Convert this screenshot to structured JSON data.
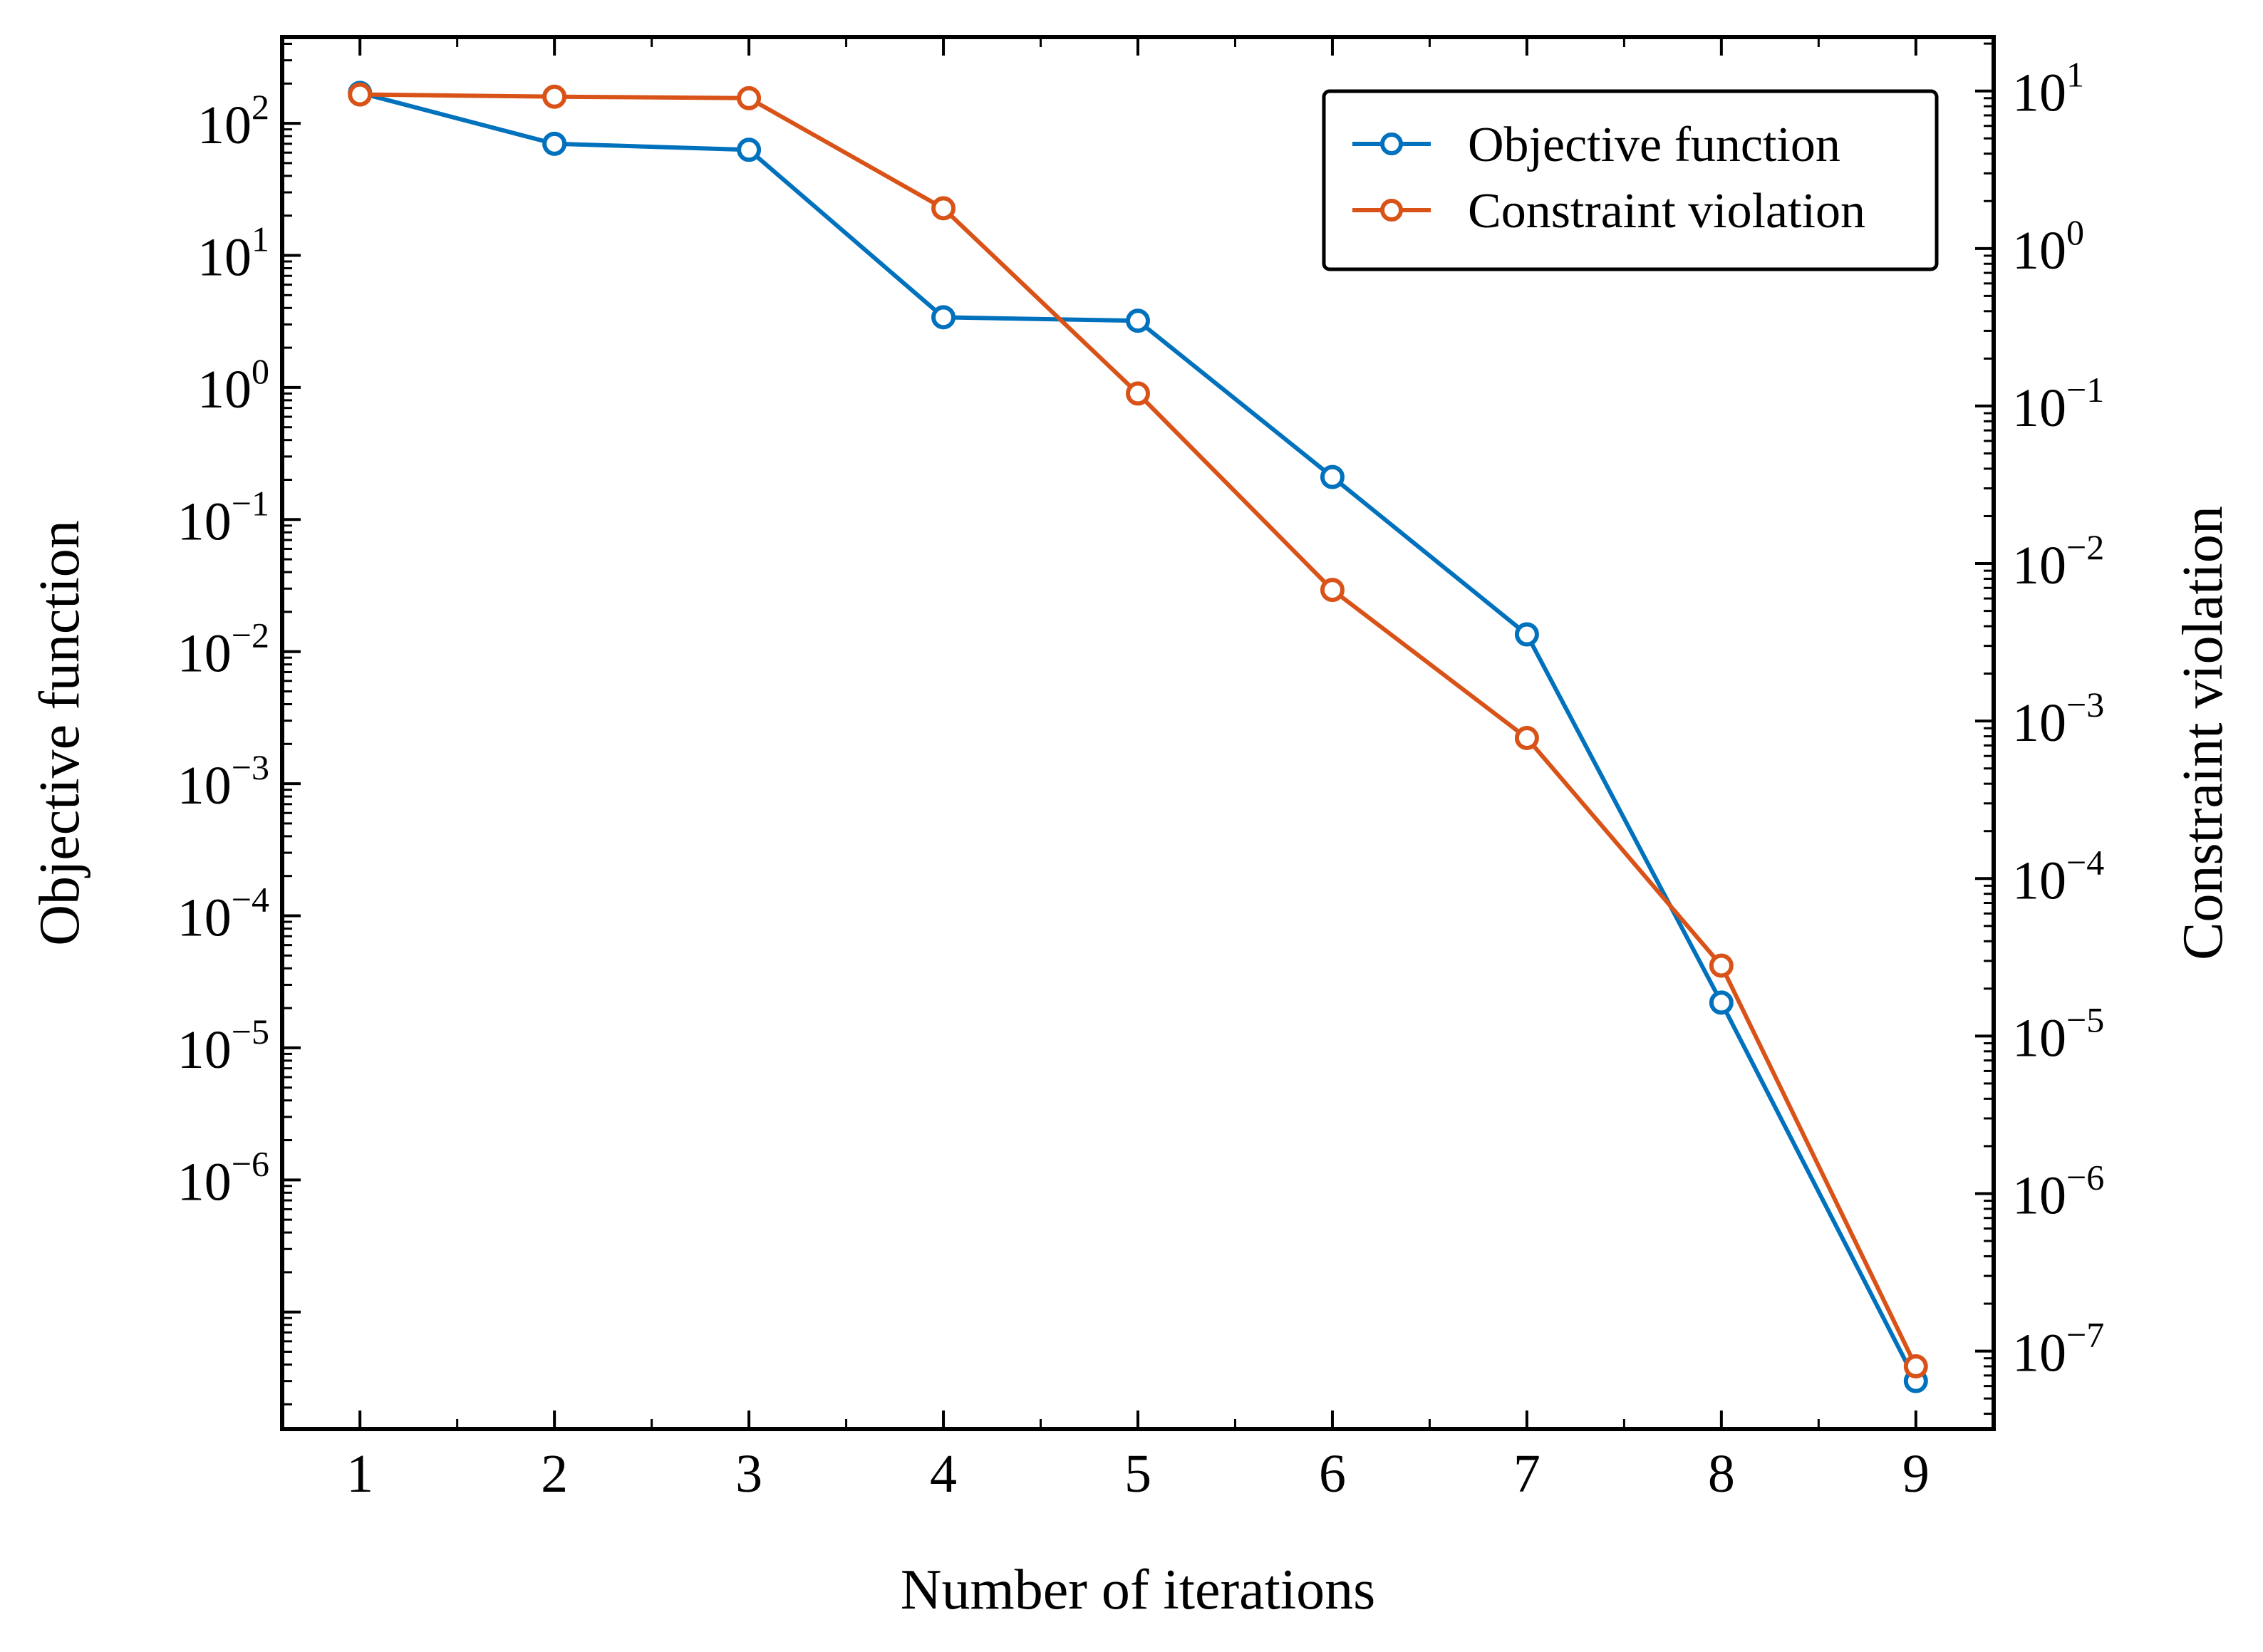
{
  "chart_data": {
    "type": "line",
    "title": "",
    "xlabel": "Number of iterations",
    "ylabel": "Objective function",
    "y2label": "Constraint violation",
    "x": [
      1,
      2,
      3,
      4,
      5,
      6,
      7,
      8,
      9
    ],
    "x_ticks": [
      "1",
      "2",
      "3",
      "4",
      "5",
      "6",
      "7",
      "8",
      "9"
    ],
    "xlim": [
      0.6,
      9.4
    ],
    "y_scale": "log",
    "ylim": [
      1.3e-08,
      450
    ],
    "y_ticks": [
      {
        "value": 100,
        "base": "10",
        "exp": "2"
      },
      {
        "value": 10,
        "base": "10",
        "exp": "1"
      },
      {
        "value": 1,
        "base": "10",
        "exp": "0"
      },
      {
        "value": 0.1,
        "base": "10",
        "exp": "−1"
      },
      {
        "value": 0.01,
        "base": "10",
        "exp": "−2"
      },
      {
        "value": 0.001,
        "base": "10",
        "exp": "−3"
      },
      {
        "value": 0.0001,
        "base": "10",
        "exp": "−4"
      },
      {
        "value": 1e-05,
        "base": "10",
        "exp": "−5"
      },
      {
        "value": 1e-06,
        "base": "10",
        "exp": "−6"
      }
    ],
    "y2_scale": "log",
    "y2lim": [
      3.2e-08,
      22
    ],
    "y2_ticks": [
      {
        "value": 10,
        "base": "10",
        "exp": "1"
      },
      {
        "value": 1,
        "base": "10",
        "exp": "0"
      },
      {
        "value": 0.1,
        "base": "10",
        "exp": "−1"
      },
      {
        "value": 0.01,
        "base": "10",
        "exp": "−2"
      },
      {
        "value": 0.001,
        "base": "10",
        "exp": "−3"
      },
      {
        "value": 0.0001,
        "base": "10",
        "exp": "−4"
      },
      {
        "value": 1e-05,
        "base": "10",
        "exp": "−5"
      },
      {
        "value": 1e-06,
        "base": "10",
        "exp": "−6"
      },
      {
        "value": 1e-07,
        "base": "10",
        "exp": "−7"
      }
    ],
    "series": [
      {
        "name": "Objective function",
        "axis": "left",
        "color": "#0072BD",
        "values": [
          170,
          70,
          63,
          3.4,
          3.2,
          0.21,
          0.0135,
          2.2e-05,
          3e-08
        ]
      },
      {
        "name": "Constraint violation",
        "axis": "right",
        "color": "#D95319",
        "values": [
          9.5,
          9.2,
          9.0,
          1.8,
          0.12,
          0.0068,
          0.00078,
          2.8e-05,
          8e-08
        ]
      }
    ],
    "legend": {
      "position": "top-right"
    },
    "grid": false
  }
}
